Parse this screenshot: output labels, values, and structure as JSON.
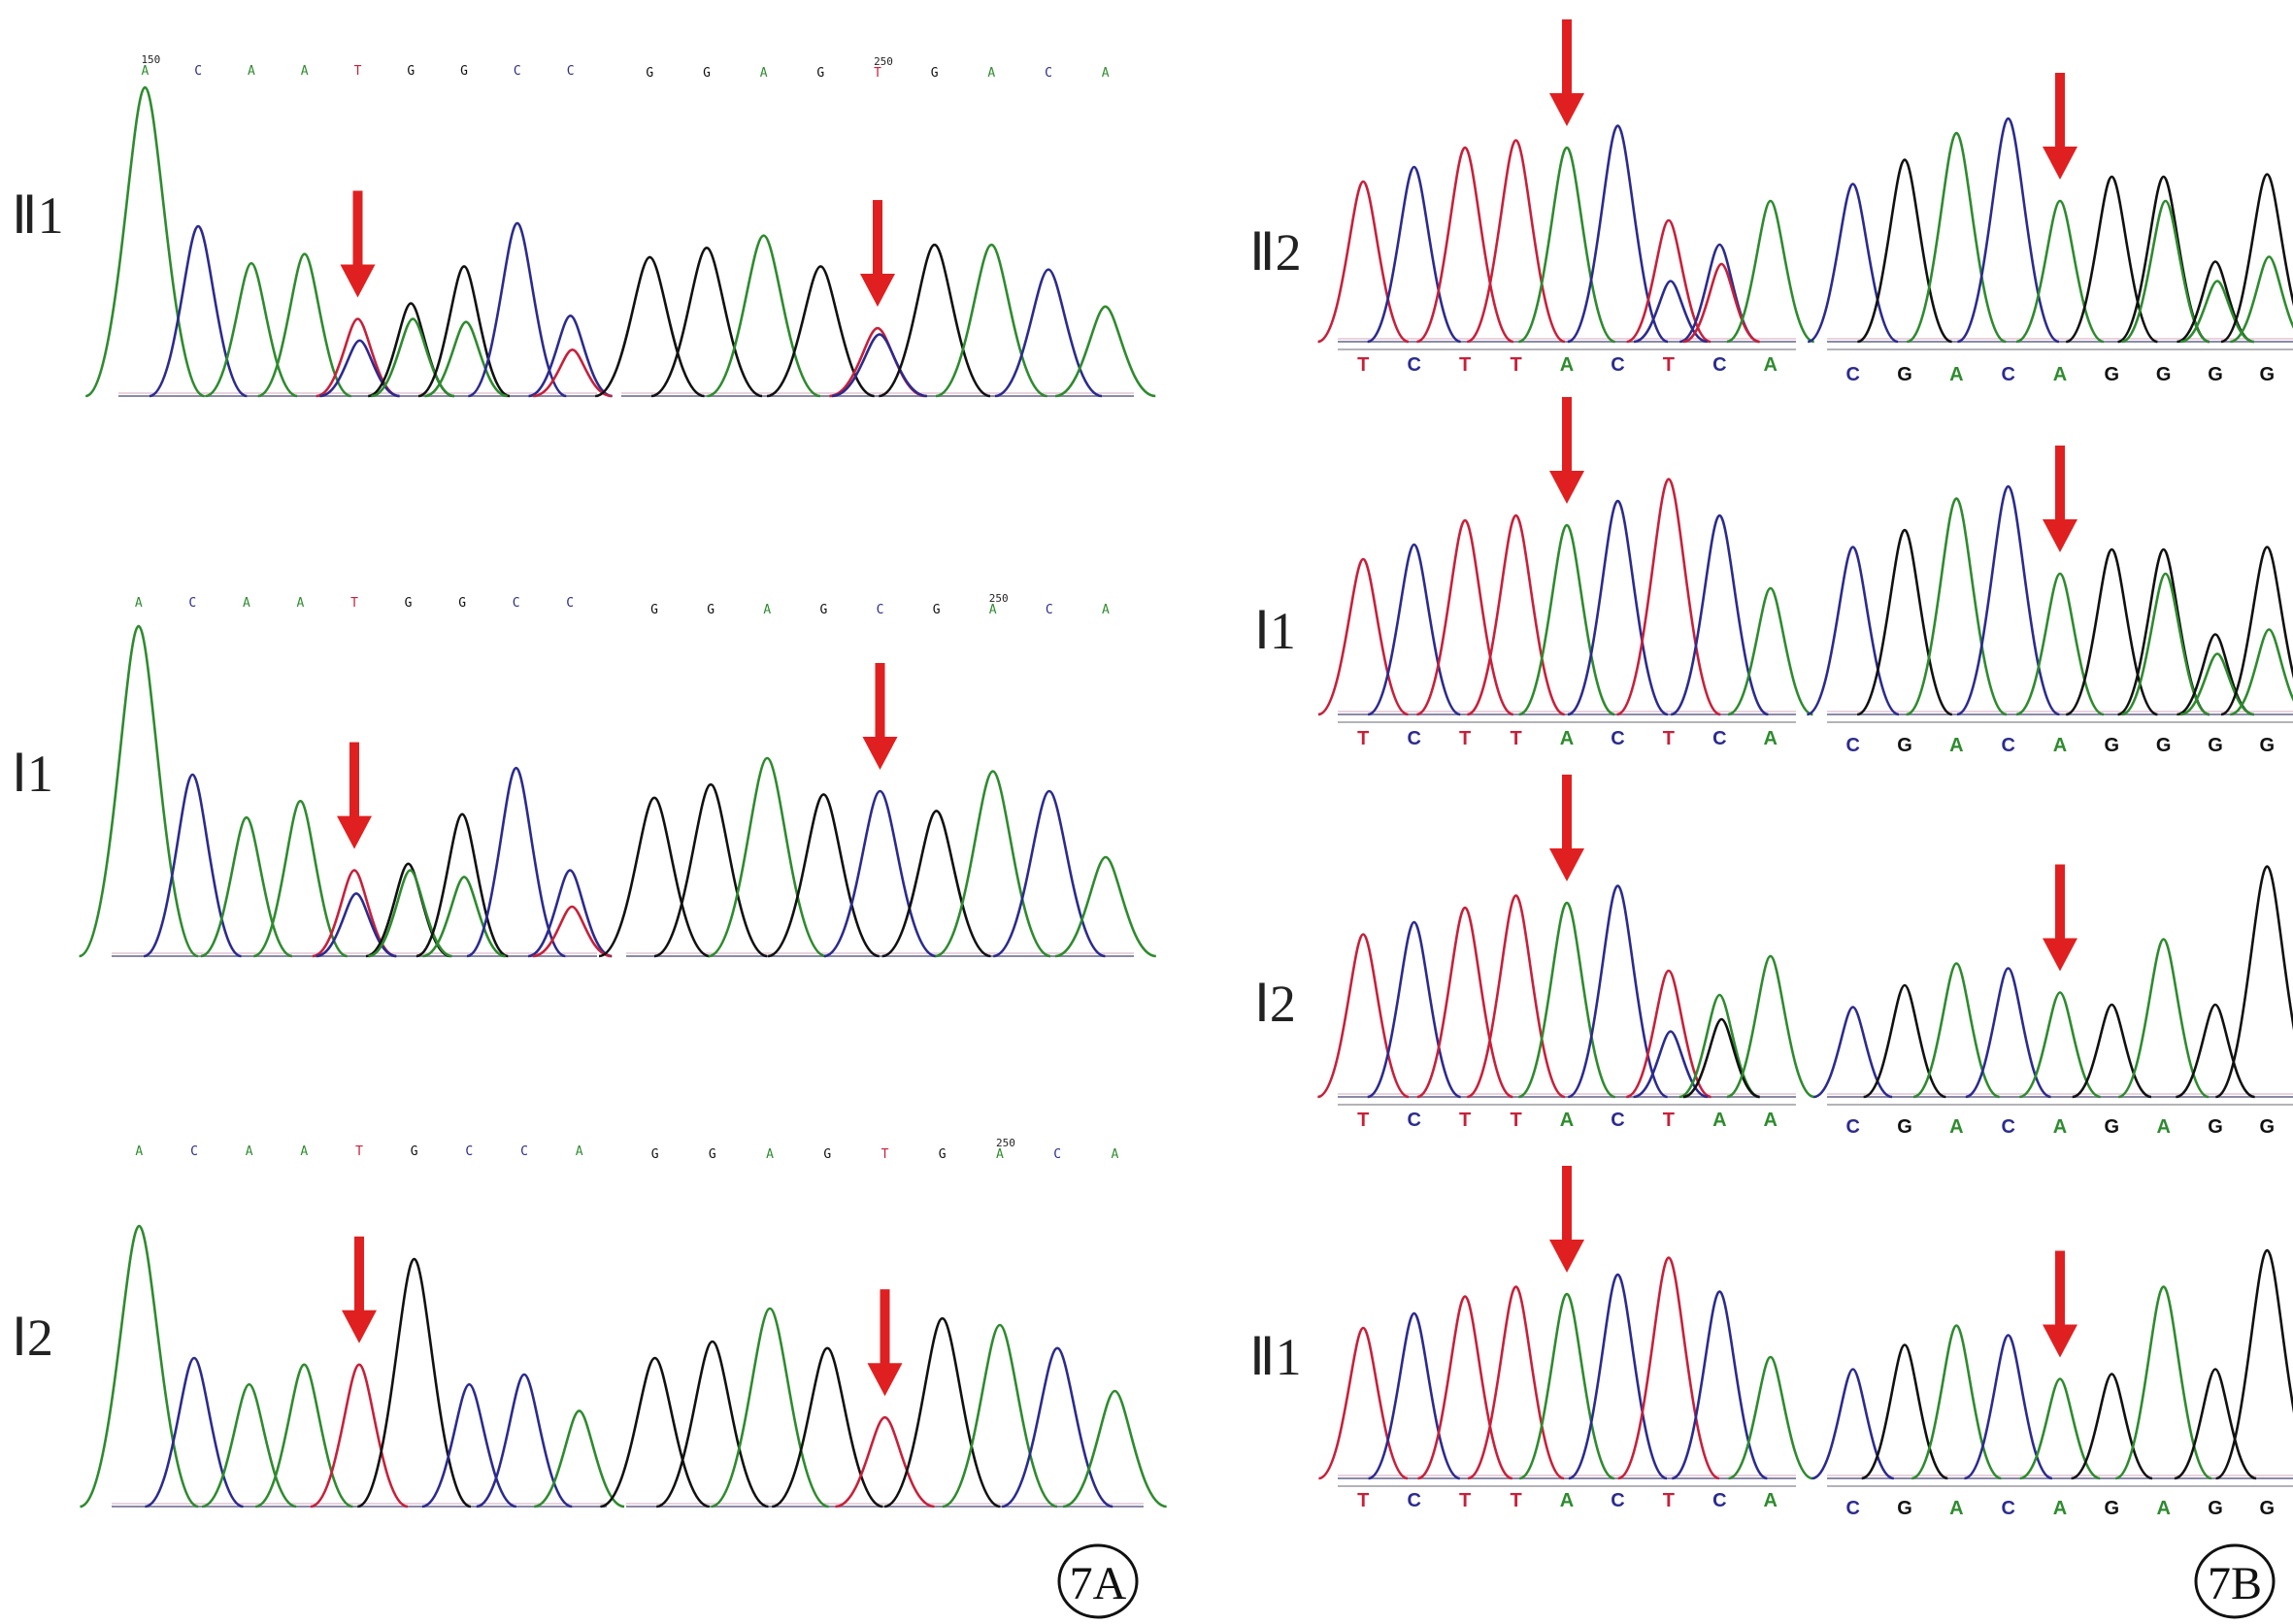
{
  "colors": {
    "A": "#2e8b2e",
    "C": "#2b2b8f",
    "G": "#111111",
    "T": "#c8203a",
    "arrow": "#e02020"
  },
  "panel_A": {
    "panel_label": "7A",
    "rows": [
      {
        "sample_label": "Ⅱ1",
        "segments": [
          {
            "bases": [
              "A",
              "C",
              "A",
              "A",
              "T",
              "G",
              "G",
              "C",
              "C"
            ],
            "peaks": [
              1,
              0.55,
              0.43,
              0.46,
              [
                0.25,
                0.18
              ],
              [
                0.3,
                0.25
              ],
              [
                0.42,
                0.24
              ],
              0.56,
              [
                0.26,
                0.15
              ]
            ],
            "arrow_index": 4,
            "marker": {
              "text": "150",
              "index": 0
            }
          },
          {
            "bases": [
              "G",
              "G",
              "A",
              "G",
              "T",
              "G",
              "A",
              "C",
              "A"
            ],
            "peaks": [
              0.45,
              0.48,
              0.52,
              0.42,
              [
                0.22,
                0.2
              ],
              0.49,
              0.49,
              0.41,
              0.29
            ],
            "arrow_index": 4,
            "marker": {
              "text": "250",
              "index": 4
            }
          }
        ]
      },
      {
        "sample_label": "Ⅰ1",
        "segments": [
          {
            "bases": [
              "A",
              "C",
              "A",
              "A",
              "T",
              "G",
              "G",
              "C",
              "C"
            ],
            "peaks": [
              1,
              0.55,
              0.42,
              0.47,
              [
                0.26,
                0.19
              ],
              [
                0.28,
                0.26
              ],
              [
                0.43,
                0.24
              ],
              0.57,
              [
                0.26,
                0.15
              ]
            ],
            "arrow_index": 4,
            "marker": null
          },
          {
            "bases": [
              "G",
              "G",
              "A",
              "G",
              "C",
              "G",
              "A",
              "C",
              "A"
            ],
            "peaks": [
              0.48,
              0.52,
              0.6,
              0.49,
              0.5,
              0.44,
              0.56,
              0.5,
              0.3
            ],
            "arrow_index": 4,
            "marker": {
              "text": "250",
              "index": 6
            }
          }
        ]
      },
      {
        "sample_label": "Ⅰ2",
        "segments": [
          {
            "bases": [
              "A",
              "C",
              "A",
              "A",
              "T",
              "G",
              "C",
              "C",
              "A"
            ],
            "peaks": [
              0.85,
              0.45,
              0.37,
              0.43,
              0.43,
              0.75,
              0.37,
              0.4,
              0.29
            ],
            "arrow_index": 4,
            "marker": null
          },
          {
            "bases": [
              "G",
              "G",
              "A",
              "G",
              "T",
              "G",
              "A",
              "C",
              "A"
            ],
            "peaks": [
              0.45,
              0.5,
              0.6,
              0.48,
              0.27,
              0.57,
              0.55,
              0.48,
              0.35
            ],
            "arrow_index": 4,
            "marker": {
              "text": "250",
              "index": 6
            }
          }
        ]
      }
    ]
  },
  "panel_B": {
    "panel_label": "7B",
    "rows": [
      {
        "sample_label": "Ⅱ2",
        "segments": [
          {
            "bases": [
              "T",
              "C",
              "T",
              "T",
              "A",
              "C",
              "T",
              "C",
              "A"
            ],
            "peaks": [
              0.66,
              0.72,
              0.8,
              0.83,
              0.8,
              0.89,
              [
                0.5,
                0.25
              ],
              [
                0.4,
                0.32
              ],
              0.58
            ],
            "arrow_index": 4
          },
          {
            "bases": [
              "C",
              "G",
              "A",
              "C",
              "A",
              "G",
              "G",
              "G",
              "G"
            ],
            "peaks": [
              0.65,
              0.75,
              0.86,
              0.92,
              0.58,
              0.68,
              [
                0.68,
                0.58
              ],
              [
                0.33,
                0.25
              ],
              [
                0.69,
                0.35
              ]
            ],
            "arrow_index": 4
          }
        ]
      },
      {
        "sample_label": "Ⅰ1",
        "segments": [
          {
            "bases": [
              "T",
              "C",
              "T",
              "T",
              "A",
              "C",
              "T",
              "C",
              "A"
            ],
            "peaks": [
              0.64,
              0.7,
              0.8,
              0.82,
              0.78,
              0.88,
              0.97,
              0.82,
              0.52
            ],
            "arrow_index": 4
          },
          {
            "bases": [
              "C",
              "G",
              "A",
              "C",
              "A",
              "G",
              "G",
              "G",
              "G"
            ],
            "peaks": [
              0.69,
              0.76,
              0.89,
              0.94,
              0.58,
              0.68,
              [
                0.68,
                0.58
              ],
              [
                0.33,
                0.25
              ],
              [
                0.69,
                0.35
              ]
            ],
            "arrow_index": 4
          }
        ]
      },
      {
        "sample_label": "Ⅰ2",
        "segments": [
          {
            "bases": [
              "T",
              "C",
              "T",
              "T",
              "A",
              "C",
              "T",
              "A",
              "A"
            ],
            "peaks": [
              0.67,
              0.72,
              0.78,
              0.83,
              0.8,
              0.87,
              [
                0.52,
                0.27
              ],
              [
                0.42,
                0.32
              ],
              0.58
            ],
            "arrow_index": 4
          },
          {
            "bases": [
              "C",
              "G",
              "A",
              "C",
              "A",
              "G",
              "A",
              "G",
              "G"
            ],
            "peaks": [
              0.37,
              0.46,
              0.55,
              0.53,
              0.43,
              0.38,
              0.65,
              0.38,
              0.95
            ],
            "arrow_index": 4
          }
        ]
      },
      {
        "sample_label": "Ⅱ1",
        "segments": [
          {
            "bases": [
              "T",
              "C",
              "T",
              "T",
              "A",
              "C",
              "T",
              "C",
              "A"
            ],
            "peaks": [
              0.62,
              0.68,
              0.75,
              0.79,
              0.76,
              0.84,
              0.91,
              0.77,
              0.5
            ],
            "arrow_index": 4
          },
          {
            "bases": [
              "C",
              "G",
              "A",
              "C",
              "A",
              "G",
              "A",
              "G",
              "G"
            ],
            "peaks": [
              0.45,
              0.55,
              0.63,
              0.59,
              0.41,
              0.43,
              0.79,
              0.45,
              0.94
            ],
            "arrow_index": 4
          }
        ]
      }
    ]
  }
}
